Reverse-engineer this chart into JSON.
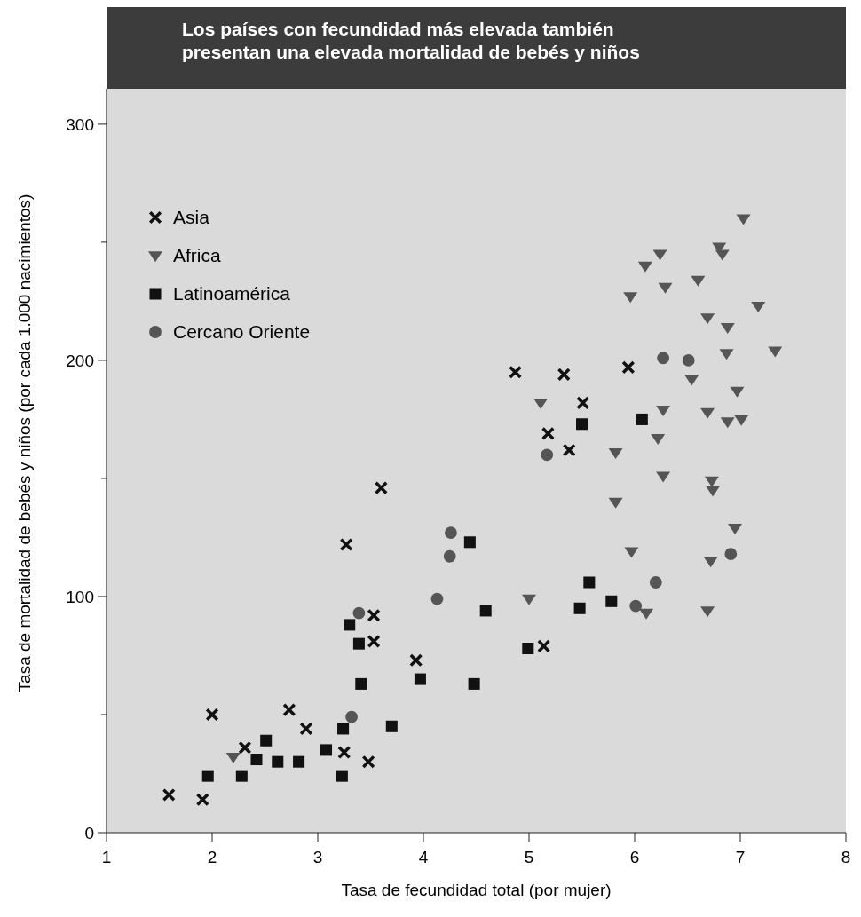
{
  "chart_data": {
    "type": "scatter",
    "title": "Los países con fecundidad más elevada también presentan una elevada mortalidad de bebés y niños",
    "xlabel": "Tasa de fecundidad total (por mujer)",
    "ylabel": "Tasa de mortalidad de bebés y niños (por cada 1.000 nacimientos)",
    "xlim": [
      1,
      8
    ],
    "xticks": [
      1,
      2,
      3,
      4,
      5,
      6,
      7,
      8
    ],
    "ylim": [
      0,
      315
    ],
    "yticks": [
      0,
      {
        "value": 50,
        "label": null
      },
      100,
      {
        "value": 150,
        "label": null
      },
      200,
      {
        "value": 250,
        "label": null
      },
      300
    ],
    "grid": false,
    "legend": "top left",
    "series": [
      {
        "name": "Asia",
        "color": "#111111",
        "marker": "cross",
        "x": [
          1.59,
          1.91,
          2.0,
          2.31,
          2.73,
          2.89,
          3.25,
          3.27,
          3.6,
          3.53,
          3.53,
          3.48,
          3.93,
          4.87,
          5.33,
          5.18,
          5.38,
          5.51,
          5.14,
          5.94
        ],
        "values": [
          16,
          14,
          50,
          36,
          52,
          44,
          34,
          122,
          146,
          92,
          81,
          30,
          73,
          195,
          194,
          169,
          162,
          182,
          79,
          197
        ]
      },
      {
        "name": "Africa",
        "color": "#555555",
        "marker": "triangle",
        "x": [
          2.2,
          5.11,
          5.0,
          5.82,
          5.82,
          5.96,
          6.1,
          6.24,
          6.29,
          6.27,
          6.22,
          6.27,
          5.97,
          6.11,
          6.54,
          6.6,
          6.69,
          6.69,
          6.74,
          6.83,
          6.8,
          6.73,
          6.72,
          6.69,
          6.88,
          6.87,
          6.88,
          6.97,
          7.01,
          7.03,
          6.95,
          7.17,
          7.33
        ],
        "values": [
          32,
          182,
          99,
          161,
          140,
          227,
          240,
          245,
          231,
          179,
          167,
          151,
          119,
          93,
          192,
          234,
          218,
          178,
          145,
          245,
          248,
          149,
          115,
          94,
          214,
          203,
          174,
          187,
          175,
          260,
          129,
          223,
          204
        ]
      },
      {
        "name": "Latinoamérica",
        "color": "#111111",
        "marker": "square",
        "x": [
          1.96,
          2.28,
          2.42,
          2.51,
          2.62,
          2.82,
          3.08,
          3.23,
          3.24,
          3.3,
          3.39,
          3.41,
          3.7,
          3.97,
          4.44,
          4.48,
          4.59,
          4.99,
          5.48,
          5.5,
          5.57,
          5.78,
          6.07
        ],
        "values": [
          24,
          24,
          31,
          39,
          30,
          30,
          35,
          24,
          44,
          88,
          80,
          63,
          45,
          65,
          123,
          63,
          94,
          78,
          95,
          173,
          106,
          98,
          175
        ]
      },
      {
        "name": "Cercano Oriente",
        "color": "#555555",
        "marker": "circle",
        "x": [
          3.32,
          3.39,
          4.13,
          4.26,
          4.25,
          5.17,
          6.01,
          6.2,
          6.27,
          6.51,
          6.91
        ],
        "values": [
          49,
          93,
          99,
          127,
          117,
          160,
          96,
          106,
          201,
          200,
          118
        ]
      }
    ]
  }
}
